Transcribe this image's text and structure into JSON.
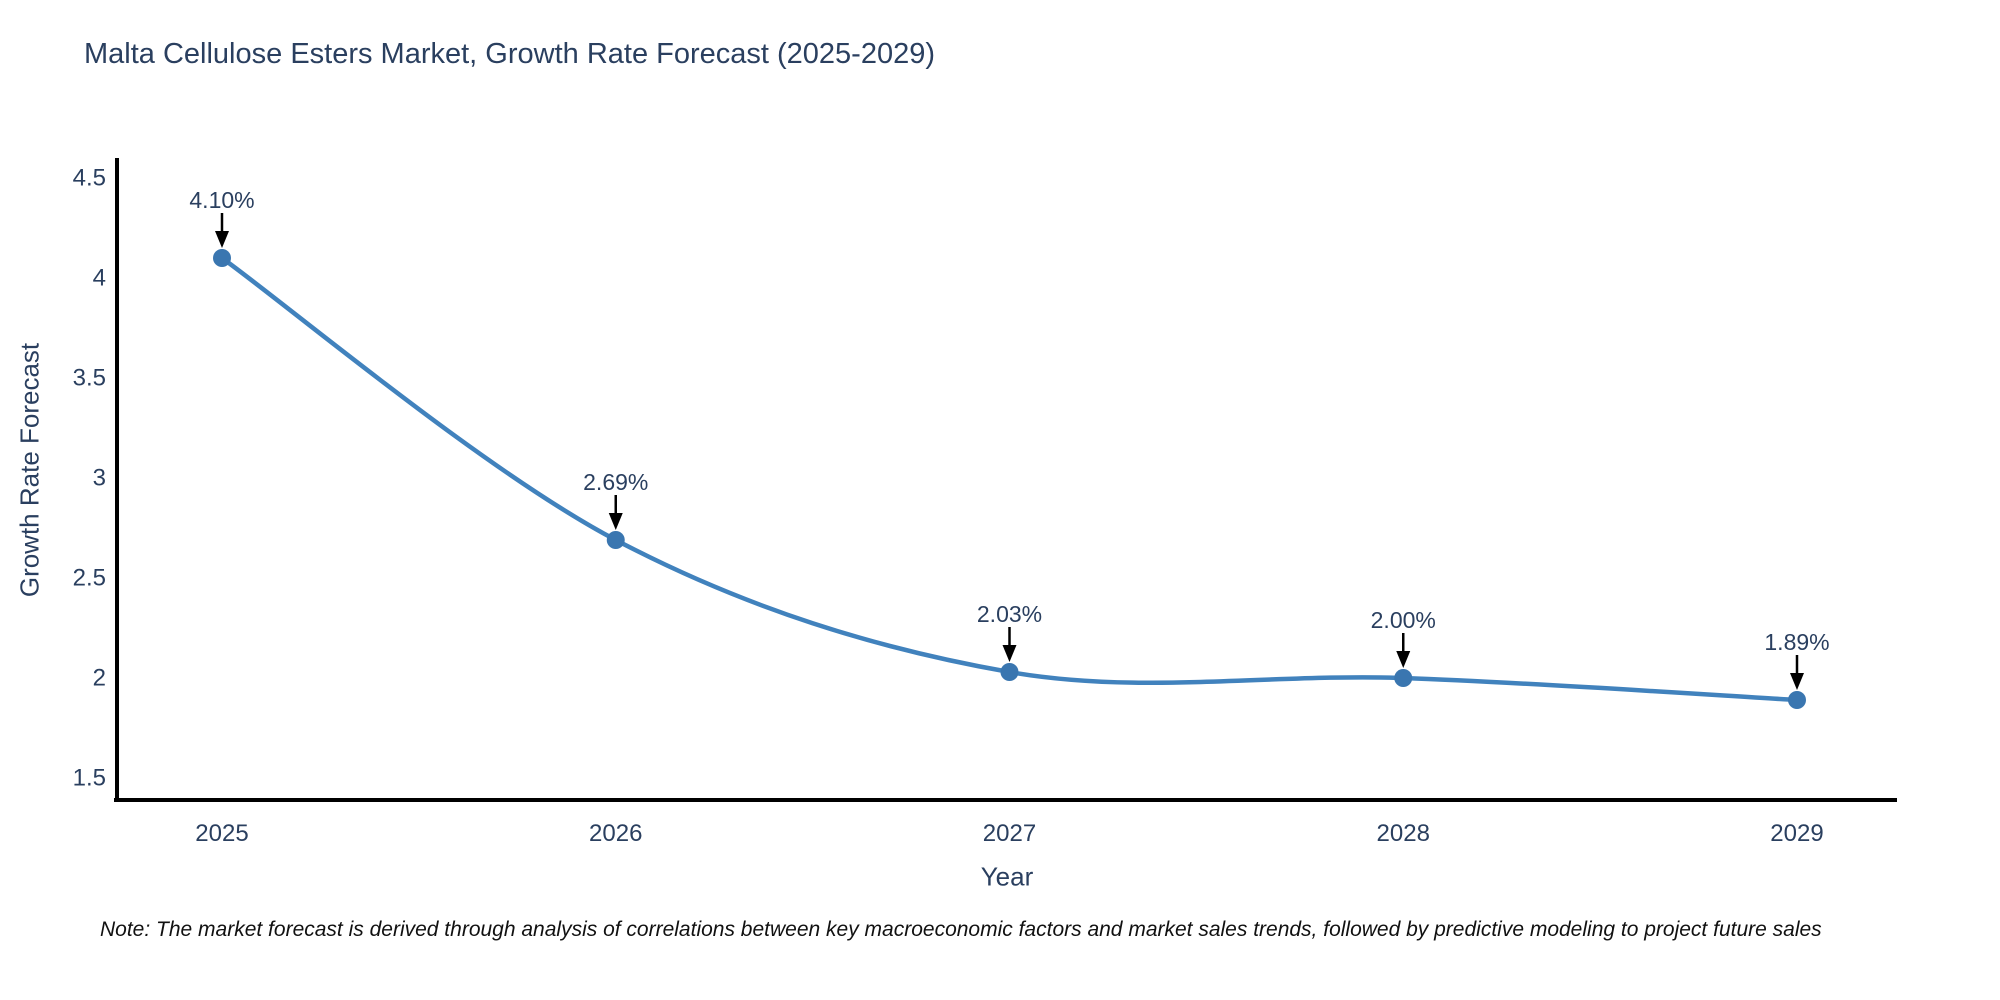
{
  "page": {
    "title": "Malta Cellulose Esters Market, Growth Rate Forecast (2025-2029)",
    "note": "Note: The market forecast is derived through analysis of correlations between key macroeconomic factors and market sales trends, followed by predictive modeling to project future sales"
  },
  "chart_data": {
    "type": "line",
    "title": "Malta Cellulose Esters Market, Growth Rate Forecast (2025-2029)",
    "x": [
      2025,
      2026,
      2027,
      2028,
      2029
    ],
    "values": [
      4.1,
      2.69,
      2.03,
      2.0,
      1.89
    ],
    "point_labels": [
      "4.10%",
      "2.69%",
      "2.03%",
      "2.00%",
      "1.89%"
    ],
    "xlabel": "Year",
    "ylabel": "Growth Rate Forecast",
    "ylim": [
      1.5,
      4.5
    ],
    "yticks": [
      4.5,
      4,
      3.5,
      3,
      2.5,
      2,
      1.5
    ],
    "line_shape": "spline",
    "grid": false,
    "legend_position": "none",
    "colors": {
      "line": "#4182bd",
      "marker": "#3a76b0",
      "annotation_text": "#2a3f5f",
      "annotation_arrow": "#000000",
      "axis_line": "#000000",
      "tick_text": "#2a3f5f",
      "title_text": "#2a3f5f",
      "note_text": "#111111",
      "background": "#ffffff"
    }
  }
}
